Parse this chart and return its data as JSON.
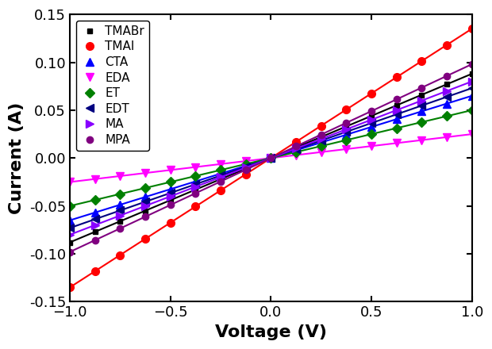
{
  "title": "",
  "xlabel": "Voltage (V)",
  "ylabel": "Current (A)",
  "xlim": [
    -1.0,
    1.0
  ],
  "ylim": [
    -0.15,
    0.15
  ],
  "xticks": [
    -1.0,
    -0.5,
    0.0,
    0.5,
    1.0
  ],
  "yticks": [
    -0.15,
    -0.1,
    -0.05,
    0.0,
    0.05,
    0.1,
    0.15
  ],
  "series": [
    {
      "label": "TMABr",
      "color": "#000000",
      "marker": "s",
      "markersize": 5,
      "conductance": 0.088,
      "power": 1.0
    },
    {
      "label": "TMAI",
      "color": "#ff0000",
      "marker": "o",
      "markersize": 7,
      "conductance": 0.135,
      "power": 1.0
    },
    {
      "label": "CTA",
      "color": "#0000ff",
      "marker": "^",
      "markersize": 7,
      "conductance": 0.065,
      "power": 1.0
    },
    {
      "label": "EDA",
      "color": "#ff00ff",
      "marker": "v",
      "markersize": 7,
      "conductance": 0.025,
      "power": 1.0
    },
    {
      "label": "ET",
      "color": "#008000",
      "marker": "D",
      "markersize": 6,
      "conductance": 0.05,
      "power": 1.0
    },
    {
      "label": "EDT",
      "color": "#000080",
      "marker": "<",
      "markersize": 7,
      "conductance": 0.073,
      "power": 1.0
    },
    {
      "label": "MA",
      "color": "#8800ff",
      "marker": ">",
      "markersize": 7,
      "conductance": 0.08,
      "power": 1.0
    },
    {
      "label": "MPA",
      "color": "#800080",
      "marker": "o",
      "markersize": 6,
      "conductance": 0.098,
      "power": 1.0
    }
  ],
  "legend_fontsize": 11,
  "axis_fontsize": 16,
  "tick_fontsize": 13,
  "linewidth": 1.5,
  "n_points": 17,
  "figwidth": 6.2,
  "figheight": 4.4
}
